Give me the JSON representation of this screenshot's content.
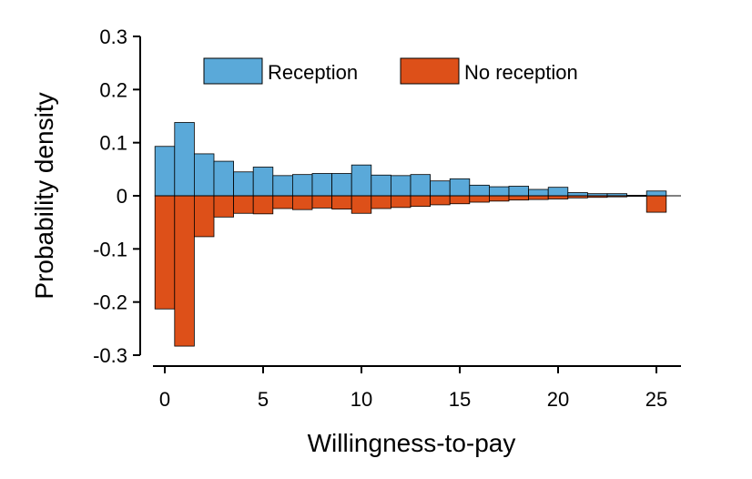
{
  "chart_data": {
    "type": "bar",
    "xlabel": "Willingness-to-pay",
    "ylabel": "Probability density",
    "xlim": [
      -0.5,
      26.5
    ],
    "ylim": [
      -0.3,
      0.3
    ],
    "xticks": [
      0,
      5,
      10,
      15,
      20,
      25
    ],
    "yticks": [
      0.3,
      0.2,
      0.1,
      0,
      -0.1,
      -0.2,
      -0.3
    ],
    "ytick_labels": [
      "0.3",
      "0.2",
      "0.1",
      "0",
      "-0.1",
      "-0.2",
      "-0.3"
    ],
    "legend_position": "top",
    "x": [
      0,
      1,
      2,
      3,
      4,
      5,
      6,
      7,
      8,
      9,
      10,
      11,
      12,
      13,
      14,
      15,
      16,
      17,
      18,
      19,
      20,
      21,
      22,
      23,
      24,
      25
    ],
    "series": [
      {
        "name": "Reception",
        "color": "#5aa9d9",
        "values": [
          0.093,
          0.138,
          0.079,
          0.065,
          0.045,
          0.054,
          0.038,
          0.04,
          0.042,
          0.042,
          0.058,
          0.039,
          0.038,
          0.04,
          0.028,
          0.032,
          0.02,
          0.017,
          0.018,
          0.012,
          0.016,
          0.006,
          0.004,
          0.004,
          0.001,
          0.009
        ]
      },
      {
        "name": "No reception",
        "color": "#dd5019",
        "values": [
          -0.213,
          -0.283,
          -0.077,
          -0.04,
          -0.033,
          -0.034,
          -0.024,
          -0.026,
          -0.023,
          -0.025,
          -0.033,
          -0.024,
          -0.022,
          -0.02,
          -0.017,
          -0.015,
          -0.012,
          -0.01,
          -0.008,
          -0.007,
          -0.006,
          -0.004,
          -0.003,
          -0.002,
          -0.001,
          -0.031
        ]
      }
    ]
  }
}
